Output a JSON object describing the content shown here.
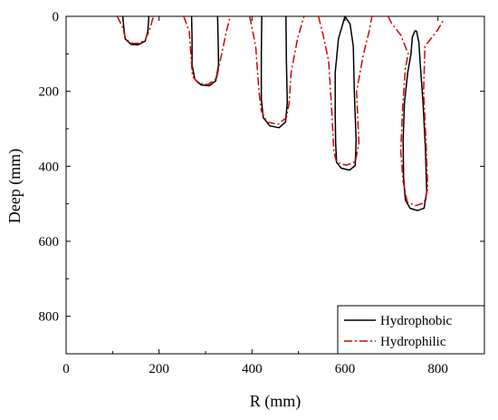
{
  "chart_data": {
    "type": "line",
    "xlabel": "R (mm)",
    "ylabel": "Deep (mm)",
    "xlim": [
      0,
      900
    ],
    "ylim": [
      900,
      0
    ],
    "y_inverted": true,
    "grid": false,
    "legend_position": "bottom-right",
    "xticks": [
      0,
      200,
      400,
      600,
      800
    ],
    "yticks": [
      0,
      200,
      400,
      600,
      800
    ],
    "xtick_labels": [
      "0",
      "200",
      "400",
      "600",
      "800"
    ],
    "ytick_labels": [
      "0",
      "200",
      "400",
      "600",
      "800"
    ],
    "series": [
      {
        "name": "Hydrophobic",
        "color": "#000000",
        "dash": "solid",
        "profiles": [
          [
            [
              122,
              0
            ],
            [
              124,
              30
            ],
            [
              127,
              60
            ],
            [
              140,
              75
            ],
            [
              155,
              76
            ],
            [
              170,
              66
            ],
            [
              176,
              40
            ],
            [
              178,
              0
            ]
          ],
          [
            [
              270,
              0
            ],
            [
              271,
              60
            ],
            [
              271,
              130
            ],
            [
              277,
              168
            ],
            [
              290,
              183
            ],
            [
              308,
              185
            ],
            [
              322,
              172
            ],
            [
              328,
              130
            ],
            [
              327,
              60
            ],
            [
              326,
              0
            ]
          ],
          [
            [
              421,
              0
            ],
            [
              420,
              100
            ],
            [
              420,
              220
            ],
            [
              424,
              270
            ],
            [
              438,
              292
            ],
            [
              458,
              297
            ],
            [
              472,
              282
            ],
            [
              476,
              230
            ],
            [
              474,
              120
            ],
            [
              473,
              0
            ]
          ],
          [
            [
              600,
              0
            ],
            [
              586,
              60
            ],
            [
              579,
              150
            ],
            [
              579,
              260
            ],
            [
              580,
              340
            ],
            [
              582,
              390
            ],
            [
              592,
              405
            ],
            [
              610,
              410
            ],
            [
              622,
              398
            ],
            [
              624,
              330
            ],
            [
              620,
              200
            ],
            [
              618,
              80
            ],
            [
              611,
              20
            ],
            [
              600,
              0
            ]
          ],
          [
            [
              751,
              38
            ],
            [
              745,
              55
            ],
            [
              742,
              100
            ],
            [
              735,
              150
            ],
            [
              728,
              230
            ],
            [
              725,
              330
            ],
            [
              726,
              430
            ],
            [
              730,
              490
            ],
            [
              740,
              512
            ],
            [
              756,
              518
            ],
            [
              770,
              512
            ],
            [
              776,
              470
            ],
            [
              773,
              350
            ],
            [
              768,
              230
            ],
            [
              762,
              130
            ],
            [
              759,
              70
            ],
            [
              754,
              40
            ],
            [
              751,
              38
            ]
          ]
        ]
      },
      {
        "name": "Hydrophilic",
        "color": "#d50000",
        "dash": "dash-dot",
        "profiles": [
          [
            [
              110,
              0
            ],
            [
              122,
              30
            ],
            [
              128,
              60
            ],
            [
              142,
              72
            ],
            [
              158,
              72
            ],
            [
              170,
              62
            ],
            [
              178,
              42
            ],
            [
              188,
              0
            ]
          ],
          [
            [
              253,
              0
            ],
            [
              265,
              40
            ],
            [
              269,
              110
            ],
            [
              272,
              160
            ],
            [
              284,
              178
            ],
            [
              305,
              182
            ],
            [
              324,
              165
            ],
            [
              333,
              110
            ],
            [
              345,
              40
            ],
            [
              353,
              0
            ]
          ],
          [
            [
              395,
              0
            ],
            [
              408,
              80
            ],
            [
              415,
              200
            ],
            [
              420,
              252
            ],
            [
              432,
              282
            ],
            [
              456,
              288
            ],
            [
              474,
              270
            ],
            [
              480,
              230
            ],
            [
              484,
              150
            ],
            [
              498,
              60
            ],
            [
              512,
              0
            ]
          ],
          [
            [
              543,
              0
            ],
            [
              553,
              50
            ],
            [
              565,
              120
            ],
            [
              572,
              260
            ],
            [
              576,
              360
            ],
            [
              582,
              390
            ],
            [
              603,
              397
            ],
            [
              622,
              388
            ],
            [
              630,
              340
            ],
            [
              625,
              200
            ],
            [
              640,
              100
            ],
            [
              652,
              40
            ],
            [
              658,
              0
            ]
          ],
          [
            [
              693,
              0
            ],
            [
              700,
              18
            ],
            [
              720,
              50
            ],
            [
              736,
              100
            ],
            [
              730,
              140
            ],
            [
              724,
              240
            ],
            [
              720,
              360
            ],
            [
              725,
              440
            ],
            [
              734,
              495
            ],
            [
              752,
              505
            ],
            [
              770,
              498
            ],
            [
              778,
              460
            ],
            [
              775,
              350
            ],
            [
              769,
              200
            ],
            [
              772,
              80
            ],
            [
              800,
              35
            ],
            [
              812,
              10
            ]
          ]
        ]
      }
    ]
  }
}
